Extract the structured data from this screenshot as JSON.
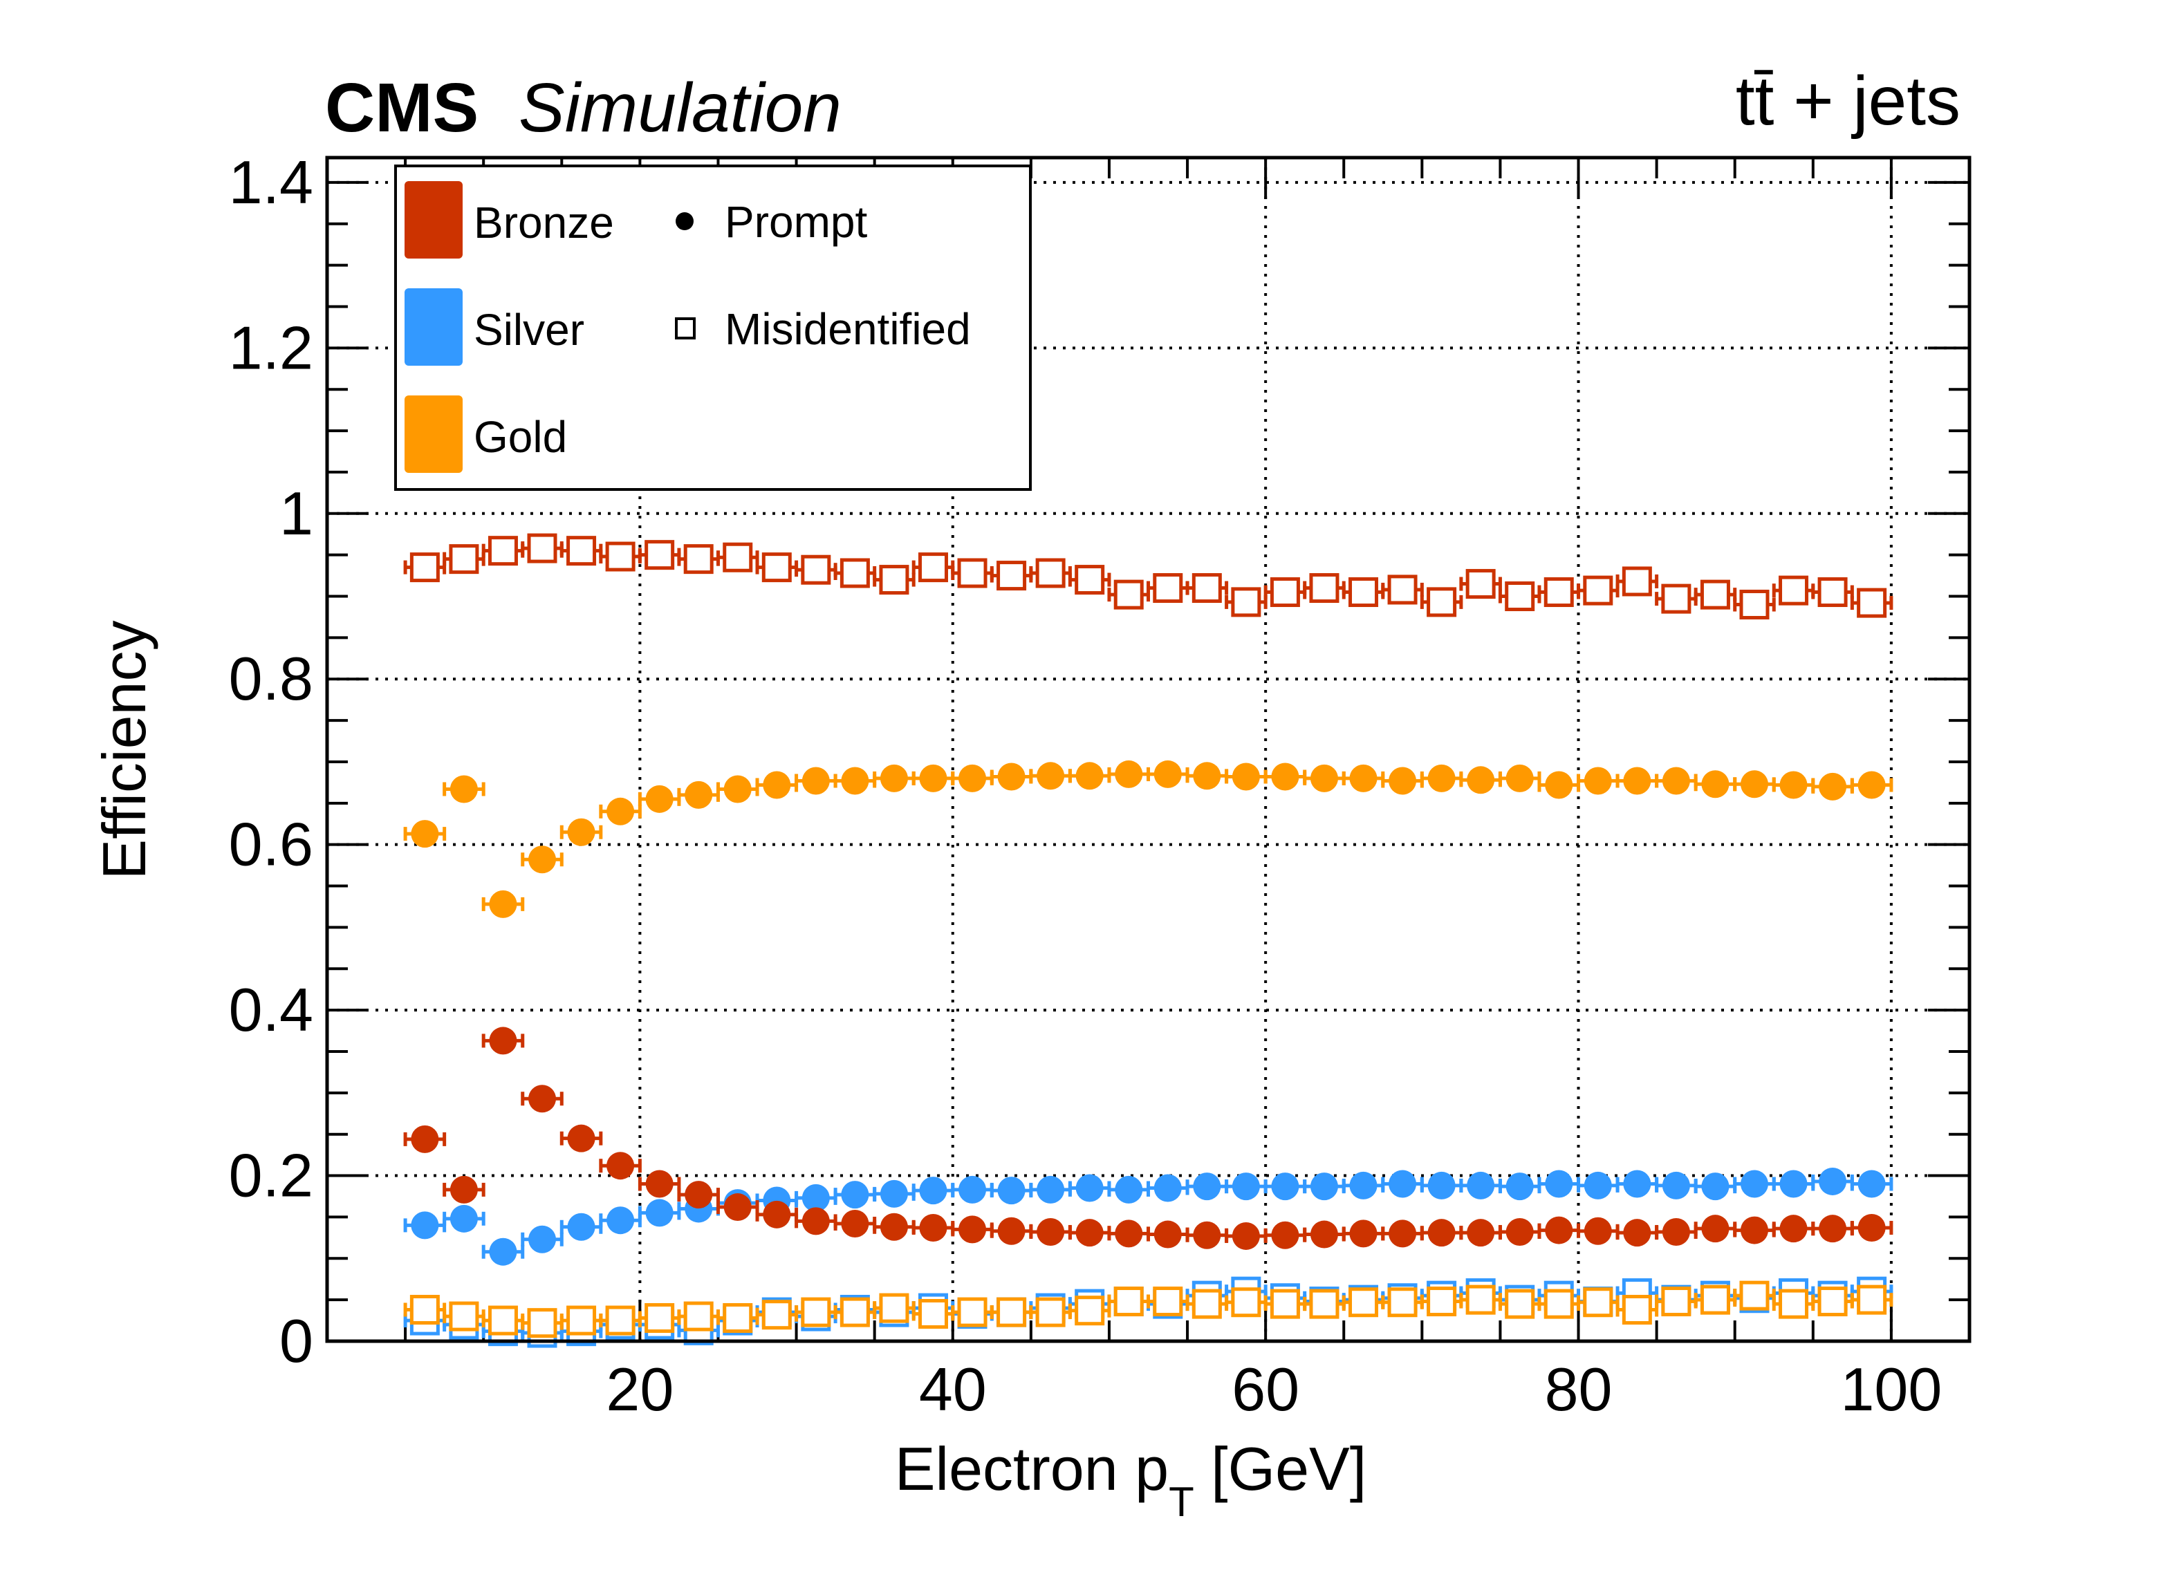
{
  "chart_data": {
    "type": "scatter",
    "header_left_bold": "CMS",
    "header_left_italic": "Simulation",
    "header_right": "tt̄ + jets",
    "xlabel_main": "Electron p",
    "xlabel_sub": "T",
    "xlabel_unit": " [GeV]",
    "ylabel": "Efficiency",
    "xlim": [
      0,
      105
    ],
    "ylim": [
      0,
      1.43
    ],
    "x_ticks": [
      20,
      40,
      60,
      80,
      100
    ],
    "x_tick_labels": [
      "20",
      "40",
      "60",
      "80",
      "100"
    ],
    "y_ticks": [
      0,
      0.2,
      0.4,
      0.6,
      0.8,
      1,
      1.2,
      1.4
    ],
    "y_tick_labels": [
      "0",
      "0.2",
      "0.4",
      "0.6",
      "0.8",
      "1",
      "1.2",
      "1.4"
    ],
    "grid": true,
    "bin_half_width": 1.25,
    "x": [
      6.25,
      8.75,
      11.25,
      13.75,
      16.25,
      18.75,
      21.25,
      23.75,
      26.25,
      28.75,
      31.25,
      33.75,
      36.25,
      38.75,
      41.25,
      43.75,
      46.25,
      48.75,
      51.25,
      53.75,
      56.25,
      58.75,
      61.25,
      63.75,
      66.25,
      68.75,
      71.25,
      73.75,
      76.25,
      78.75,
      81.25,
      83.75,
      86.25,
      88.75,
      91.25,
      93.75,
      96.25,
      98.75
    ],
    "legend": {
      "position": "top-left",
      "categories": [
        {
          "name": "Bronze",
          "color": "#cc3300"
        },
        {
          "name": "Silver",
          "color": "#3399ff"
        },
        {
          "name": "Gold",
          "color": "#ff9900"
        }
      ],
      "markers": [
        {
          "name": "Prompt",
          "style": "filled-circle"
        },
        {
          "name": "Misidentified",
          "style": "open-square"
        }
      ]
    },
    "series": [
      {
        "name": "Bronze Misidentified",
        "category": "Bronze",
        "marker": "open-square",
        "color": "#cc3300",
        "values": [
          0.935,
          0.945,
          0.955,
          0.958,
          0.955,
          0.948,
          0.95,
          0.945,
          0.947,
          0.935,
          0.932,
          0.928,
          0.92,
          0.935,
          0.928,
          0.925,
          0.928,
          0.92,
          0.902,
          0.91,
          0.91,
          0.893,
          0.905,
          0.91,
          0.905,
          0.908,
          0.893,
          0.915,
          0.9,
          0.905,
          0.907,
          0.918,
          0.897,
          0.902,
          0.89,
          0.907,
          0.905,
          0.892
        ]
      },
      {
        "name": "Gold Prompt",
        "category": "Gold",
        "marker": "filled-circle",
        "color": "#ff9900",
        "values": [
          0.613,
          0.667,
          0.528,
          0.582,
          0.615,
          0.64,
          0.655,
          0.66,
          0.667,
          0.672,
          0.677,
          0.677,
          0.68,
          0.68,
          0.68,
          0.682,
          0.683,
          0.683,
          0.685,
          0.685,
          0.683,
          0.682,
          0.682,
          0.68,
          0.68,
          0.677,
          0.68,
          0.678,
          0.68,
          0.672,
          0.677,
          0.677,
          0.677,
          0.673,
          0.673,
          0.672,
          0.67,
          0.672
        ]
      },
      {
        "name": "Silver Prompt",
        "category": "Silver",
        "marker": "filled-circle",
        "color": "#3399ff",
        "values": [
          0.14,
          0.148,
          0.108,
          0.123,
          0.138,
          0.146,
          0.155,
          0.16,
          0.167,
          0.17,
          0.173,
          0.177,
          0.178,
          0.182,
          0.183,
          0.182,
          0.183,
          0.185,
          0.183,
          0.185,
          0.187,
          0.187,
          0.187,
          0.187,
          0.188,
          0.19,
          0.188,
          0.188,
          0.187,
          0.19,
          0.188,
          0.19,
          0.188,
          0.187,
          0.19,
          0.19,
          0.193,
          0.19
        ]
      },
      {
        "name": "Bronze Prompt",
        "category": "Bronze",
        "marker": "filled-circle",
        "color": "#cc3300",
        "values": [
          0.244,
          0.183,
          0.363,
          0.293,
          0.245,
          0.212,
          0.19,
          0.177,
          0.162,
          0.153,
          0.145,
          0.142,
          0.138,
          0.137,
          0.135,
          0.133,
          0.132,
          0.131,
          0.13,
          0.129,
          0.128,
          0.127,
          0.128,
          0.129,
          0.13,
          0.13,
          0.131,
          0.131,
          0.132,
          0.134,
          0.133,
          0.131,
          0.132,
          0.136,
          0.134,
          0.136,
          0.136,
          0.137
        ]
      },
      {
        "name": "Silver Misidentified",
        "category": "Silver",
        "marker": "open-square",
        "color": "#3399ff",
        "values": [
          0.025,
          0.02,
          0.012,
          0.01,
          0.012,
          0.02,
          0.02,
          0.013,
          0.025,
          0.035,
          0.03,
          0.038,
          0.035,
          0.04,
          0.033,
          0.035,
          0.04,
          0.045,
          0.048,
          0.045,
          0.055,
          0.06,
          0.052,
          0.048,
          0.05,
          0.052,
          0.055,
          0.058,
          0.05,
          0.055,
          0.048,
          0.058,
          0.05,
          0.055,
          0.052,
          0.058,
          0.055,
          0.06
        ]
      },
      {
        "name": "Gold Misidentified",
        "category": "Gold",
        "marker": "open-square",
        "color": "#ff9900",
        "values": [
          0.038,
          0.03,
          0.025,
          0.022,
          0.025,
          0.025,
          0.028,
          0.03,
          0.028,
          0.032,
          0.035,
          0.035,
          0.04,
          0.033,
          0.035,
          0.035,
          0.035,
          0.037,
          0.048,
          0.048,
          0.045,
          0.047,
          0.045,
          0.045,
          0.047,
          0.047,
          0.048,
          0.05,
          0.045,
          0.045,
          0.047,
          0.038,
          0.048,
          0.05,
          0.055,
          0.045,
          0.048,
          0.05
        ]
      }
    ]
  }
}
